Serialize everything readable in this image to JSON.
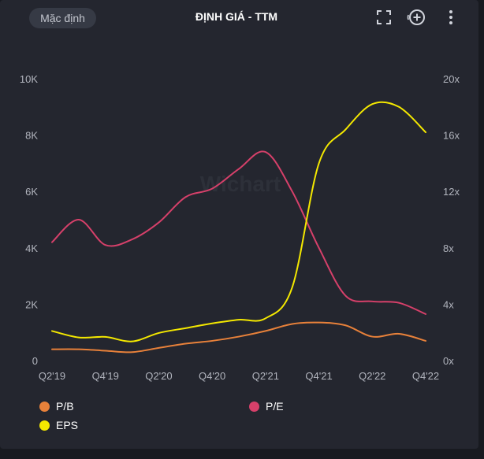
{
  "header": {
    "preset_label": "Mặc định",
    "title": "ĐỊNH GIÁ - TTM",
    "icons": [
      "fullscreen-icon",
      "add-circle-icon",
      "more-vertical-icon"
    ]
  },
  "watermark": "Wichart",
  "colors": {
    "pb": "#e8813a",
    "pe": "#d6406a",
    "eps": "#f4e800",
    "grid": "#33363f",
    "text": "#b2b5be"
  },
  "chart_data": {
    "type": "line",
    "categories": [
      "Q2'19",
      "Q3'19",
      "Q4'19",
      "Q1'20",
      "Q2'20",
      "Q3'20",
      "Q4'20",
      "Q1'21",
      "Q2'21",
      "Q3'21",
      "Q4'21",
      "Q1'22",
      "Q2'22",
      "Q3'22",
      "Q4'22"
    ],
    "x_tick_labels": [
      "Q2'19",
      "Q4'19",
      "Q2'20",
      "Q4'20",
      "Q2'21",
      "Q4'21",
      "Q2'22",
      "Q4'22"
    ],
    "left_axis": {
      "ylim": [
        0,
        10000
      ],
      "ticks": [
        "0",
        "2K",
        "4K",
        "6K",
        "8K",
        "10K"
      ]
    },
    "right_axis": {
      "ylim": [
        0,
        20
      ],
      "ticks": [
        "0x",
        "4x",
        "8x",
        "12x",
        "16x",
        "20x"
      ]
    },
    "grid": false,
    "legend_position": "bottom",
    "series": [
      {
        "name": "P/B",
        "axis": "right",
        "color": "#e8813a",
        "values": [
          0.8,
          0.8,
          0.7,
          0.6,
          0.9,
          1.2,
          1.4,
          1.7,
          2.1,
          2.6,
          2.7,
          2.5,
          1.7,
          1.9,
          1.4
        ]
      },
      {
        "name": "P/E",
        "axis": "right",
        "color": "#d6406a",
        "values": [
          8.4,
          10.0,
          8.2,
          8.6,
          9.8,
          11.6,
          12.2,
          13.6,
          14.8,
          12.0,
          8.0,
          4.6,
          4.2,
          4.1,
          3.3
        ]
      },
      {
        "name": "EPS",
        "axis": "left",
        "color": "#f4e800",
        "values": [
          1050,
          820,
          840,
          680,
          980,
          1150,
          1320,
          1450,
          1500,
          2600,
          7000,
          8200,
          9100,
          9000,
          8100
        ]
      }
    ]
  },
  "legend": [
    {
      "label": "P/B",
      "color": "#e8813a"
    },
    {
      "label": "P/E",
      "color": "#d6406a"
    },
    {
      "label": "EPS",
      "color": "#f4e800"
    }
  ]
}
